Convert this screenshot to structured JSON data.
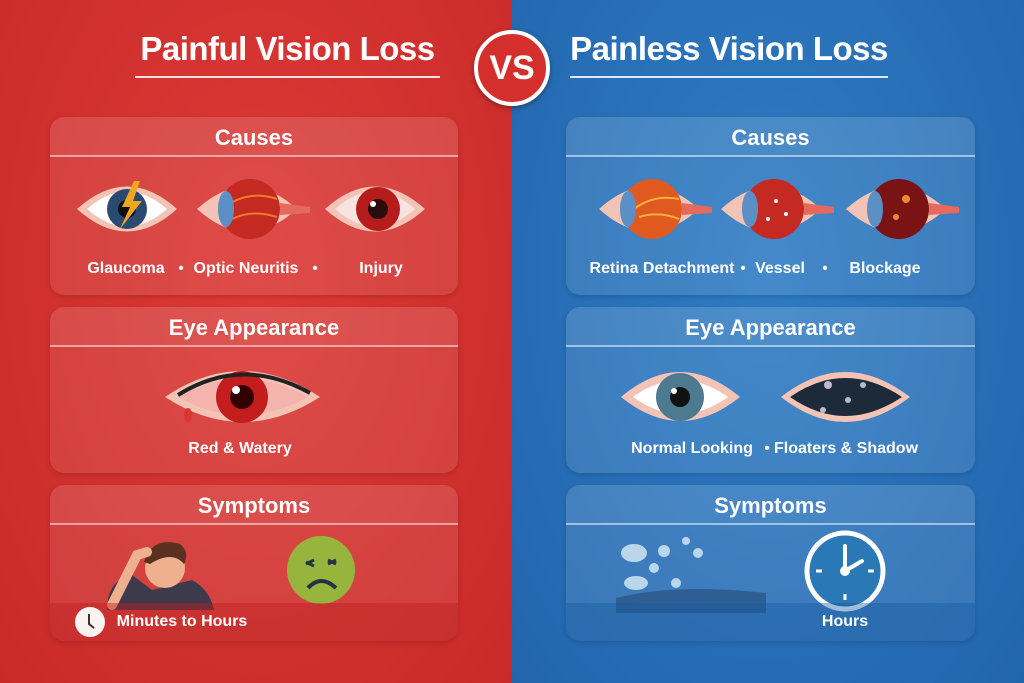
{
  "left": {
    "title": "Painful Vision Loss",
    "color": "#d6322f",
    "causes": {
      "heading": "Causes",
      "items": [
        "Glaucoma",
        "Optic Neuritis",
        "Injury"
      ]
    },
    "appearance": {
      "heading": "Eye Appearance",
      "items": [
        "Red & Watery"
      ]
    },
    "symptoms": {
      "heading": "Symptoms",
      "items": [
        "headache-person-icon",
        "nauseated-face-icon"
      ],
      "onset": "Minutes to Hours"
    }
  },
  "vs": "VS",
  "right": {
    "title": "Painless Vision Loss",
    "color": "#2a6fb8",
    "causes": {
      "heading": "Causes",
      "items": [
        "Retina Detachment",
        "Vessel",
        "Blockage"
      ]
    },
    "appearance": {
      "heading": "Eye Appearance",
      "items": [
        "Normal Looking",
        "Floaters & Shadow"
      ]
    },
    "symptoms": {
      "heading": "Symptoms",
      "items": [
        "floaters-icon",
        "clock-icon"
      ],
      "onset": "Hours"
    }
  },
  "separator": "•"
}
